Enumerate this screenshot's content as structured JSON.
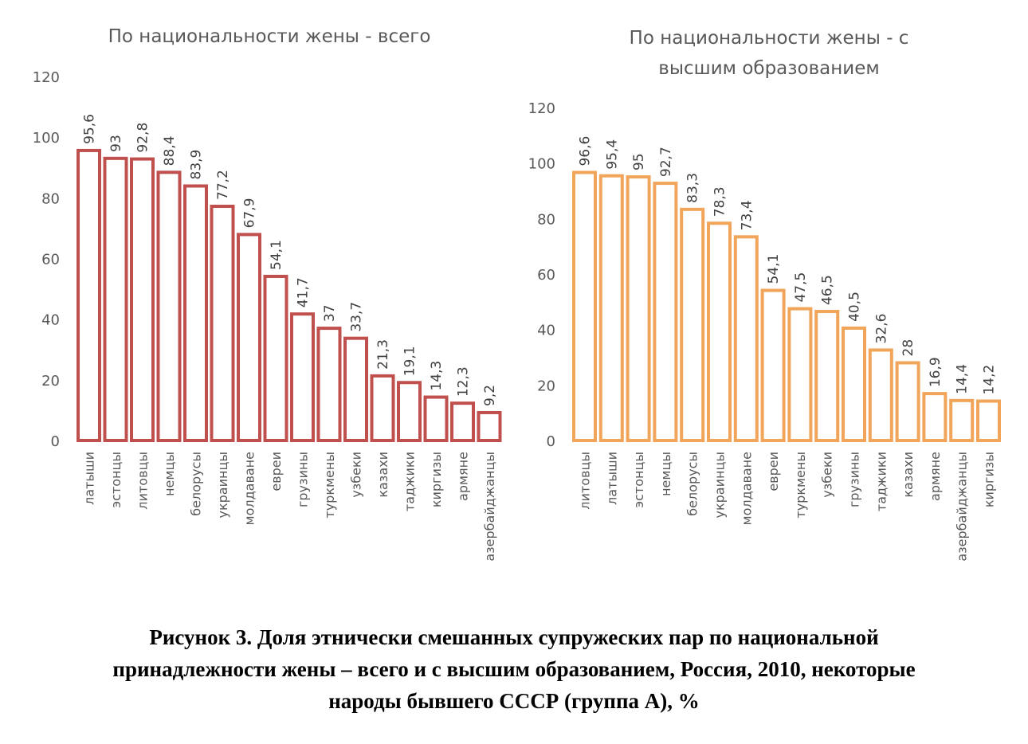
{
  "chart_data": [
    {
      "type": "bar",
      "title": [
        "По национальности жены - всего"
      ],
      "categories": [
        "латыши",
        "эстонцы",
        "литовцы",
        "немцы",
        "белорусы",
        "украинцы",
        "молдаване",
        "евреи",
        "грузины",
        "туркмены",
        "узбеки",
        "казахи",
        "таджики",
        "киргизы",
        "армяне",
        "азербайджанцы"
      ],
      "values": [
        95.6,
        93,
        92.8,
        88.4,
        83.9,
        77.2,
        67.9,
        54.1,
        41.7,
        37,
        33.7,
        21.3,
        19.1,
        14.3,
        12.3,
        9.2
      ],
      "data_labels": [
        "95,6",
        "93",
        "92,8",
        "88,4",
        "83,9",
        "77,2",
        "67,9",
        "54,1",
        "41,7",
        "37",
        "33,7",
        "21,3",
        "19,1",
        "14,3",
        "12,3",
        "9,2"
      ],
      "yticks": [
        "0",
        "20",
        "40",
        "60",
        "80",
        "100",
        "120"
      ],
      "ylim": [
        0,
        120
      ],
      "grid": false,
      "color": "#c0504d"
    },
    {
      "type": "bar",
      "title": [
        "По национальности жены - с",
        "высшим образованием"
      ],
      "categories": [
        "литовцы",
        "латыши",
        "эстонцы",
        "немцы",
        "белорусы",
        "украинцы",
        "молдаване",
        "евреи",
        "туркмены",
        "узбеки",
        "грузины",
        "таджики",
        "казахи",
        "армяне",
        "азербайджанцы",
        "киргизы"
      ],
      "values": [
        96.6,
        95.4,
        95,
        92.7,
        83.3,
        78.3,
        73.4,
        54.1,
        47.5,
        46.5,
        40.5,
        32.6,
        28,
        16.9,
        14.4,
        14.2
      ],
      "data_labels": [
        "96,6",
        "95,4",
        "95",
        "92,7",
        "83,3",
        "78,3",
        "73,4",
        "54,1",
        "47,5",
        "46,5",
        "40,5",
        "32,6",
        "28",
        "16,9",
        "14,4",
        "14,2"
      ],
      "yticks": [
        "0",
        "20",
        "40",
        "60",
        "80",
        "100",
        "120"
      ],
      "ylim": [
        0,
        120
      ],
      "grid": false,
      "color": "#f0a55a"
    }
  ],
  "caption": {
    "lines": [
      "Рисунок 3. Доля этнически смешанных супружеских пар по национальной",
      "принадлежности жены – всего и с высшим образованием, Россия, 2010, некоторые",
      "народы бывшего СССР (группа А), %"
    ]
  }
}
